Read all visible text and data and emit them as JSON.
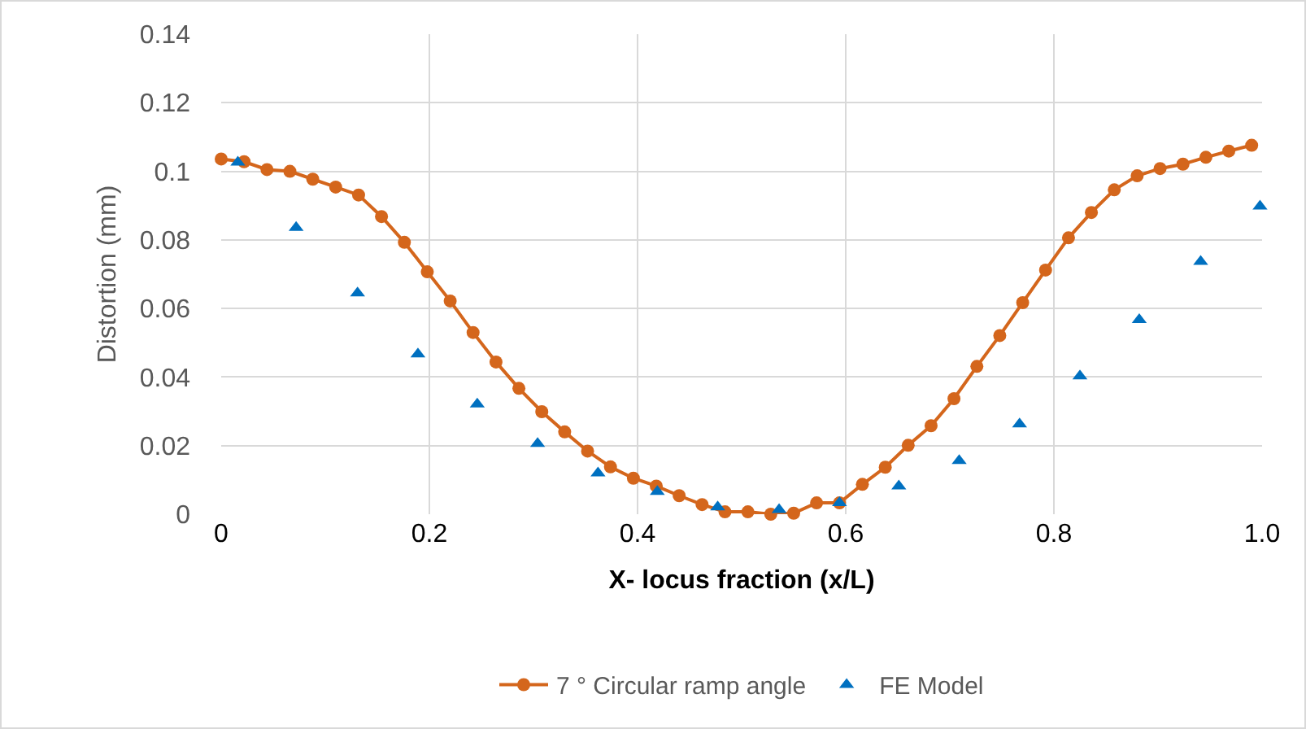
{
  "chart_data": {
    "type": "scatter",
    "xlabel": "X- locus fraction (x/L)",
    "ylabel": "Distortion (mm)",
    "xlim": [
      0,
      1.0
    ],
    "xticks": [
      0,
      0.2,
      0.4,
      0.6,
      0.8,
      {
        "value": 1.0,
        "label": "1.0"
      }
    ],
    "ylim": [
      0,
      0.14
    ],
    "yticks": [
      0,
      0.02,
      0.04,
      0.06,
      0.08,
      0.1,
      0.12,
      0.14
    ],
    "grid": true,
    "legend": "bottom",
    "series": [
      {
        "name": "7 ° Circular ramp angle",
        "type": "line",
        "marker": "circle",
        "line_style": "solid",
        "color": "#d4661c",
        "x": [
          0,
          0.022,
          0.044,
          0.066,
          0.088,
          0.11,
          0.132,
          0.154,
          0.176,
          0.198,
          0.22,
          0.242,
          0.264,
          0.286,
          0.308,
          0.33,
          0.352,
          0.374,
          0.396,
          0.418,
          0.44,
          0.462,
          0.484,
          0.506,
          0.528,
          0.55,
          0.572,
          0.594,
          0.616,
          0.638,
          0.66,
          0.682,
          0.704,
          0.726,
          0.748,
          0.77,
          0.792,
          0.814,
          0.836,
          0.858,
          0.88,
          0.902,
          0.924,
          0.946,
          0.968,
          0.99
        ],
        "values": [
          0.1036,
          0.1028,
          0.1005,
          0.1,
          0.0977,
          0.0954,
          0.0931,
          0.0868,
          0.0793,
          0.0707,
          0.0622,
          0.053,
          0.0444,
          0.0367,
          0.0299,
          0.024,
          0.0184,
          0.0138,
          0.0105,
          0.0082,
          0.0054,
          0.0028,
          0.0007,
          0.0007,
          0,
          0.0003,
          0.0033,
          0.0033,
          0.0087,
          0.0137,
          0.0201,
          0.0258,
          0.0337,
          0.0431,
          0.0521,
          0.0617,
          0.0712,
          0.0806,
          0.088,
          0.0946,
          0.0987,
          0.1008,
          0.1021,
          0.1041,
          0.1059,
          0.1076
        ]
      },
      {
        "name": "FE Model",
        "marker": "triangle",
        "color": "#0070c0",
        "x": [
          0.016,
          0.072,
          0.131,
          0.189,
          0.246,
          0.304,
          0.362,
          0.419,
          0.477,
          0.536,
          0.594,
          0.651,
          0.709,
          0.767,
          0.825,
          0.882,
          0.941,
          0.998
        ],
        "values": [
          0.1026,
          0.0836,
          0.0645,
          0.0467,
          0.0321,
          0.0206,
          0.012,
          0.0066,
          0.0021,
          0.0013,
          0.0033,
          0.0082,
          0.0156,
          0.0263,
          0.0403,
          0.0567,
          0.0737,
          0.0898
        ]
      }
    ]
  }
}
